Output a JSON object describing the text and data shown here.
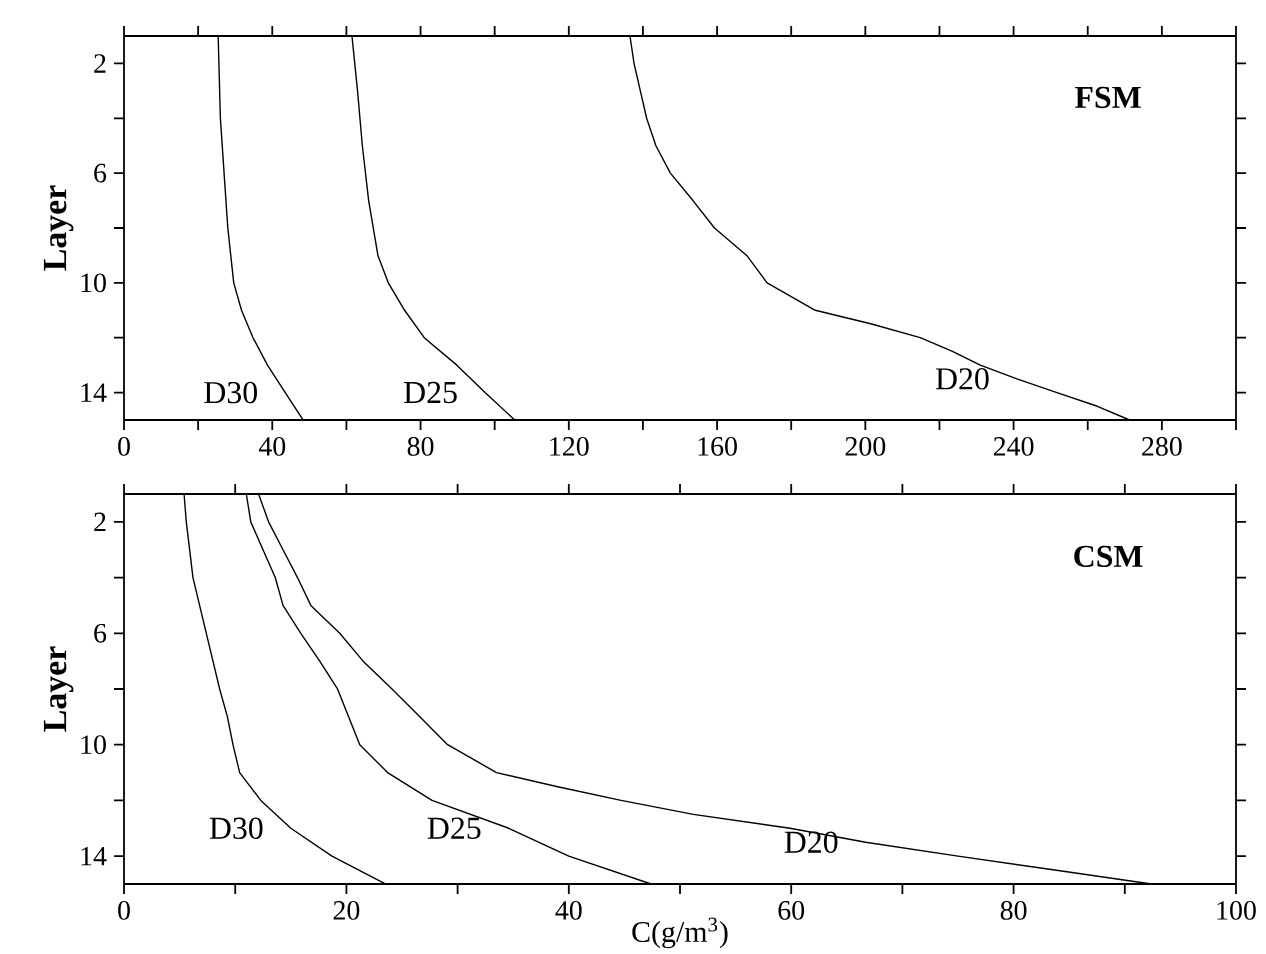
{
  "chart_data": [
    {
      "type": "line",
      "title": "FSM",
      "ylabel": "Layer",
      "xlim": [
        0,
        300
      ],
      "ylim": [
        15,
        1
      ],
      "xticks": [
        0,
        {
          "value": 20,
          "label": null
        },
        40,
        {
          "value": 60,
          "label": null
        },
        80,
        {
          "value": 100,
          "label": null
        },
        120,
        {
          "value": 140,
          "label": null
        },
        160,
        {
          "value": 180,
          "label": null
        },
        200,
        {
          "value": 220,
          "label": null
        },
        240,
        {
          "value": 260,
          "label": null
        },
        280,
        {
          "value": 300,
          "label": null
        }
      ],
      "yticks": [
        2,
        {
          "value": 4,
          "label": null
        },
        6,
        {
          "value": 8,
          "label": null
        },
        10,
        {
          "value": 12,
          "label": null
        },
        14
      ],
      "series": [
        {
          "name": "D30",
          "color": "#000000",
          "x": [
            25.4,
            26,
            27,
            28,
            29.6,
            31.7,
            34.8,
            38.7,
            43.5,
            48.3
          ],
          "values": [
            1,
            4,
            6,
            8,
            10,
            11,
            12,
            13,
            14,
            15
          ]
        },
        {
          "name": "D25",
          "color": "#000000",
          "x": [
            61.5,
            63,
            64.3,
            66,
            68.5,
            71.3,
            75.7,
            81,
            89.8,
            97.4,
            105.4
          ],
          "values": [
            1,
            3,
            5,
            7,
            9,
            10,
            11,
            12,
            13,
            14,
            15
          ]
        },
        {
          "name": "D20",
          "color": "#000000",
          "x": [
            136.5,
            137.6,
            139.3,
            141,
            143.5,
            147.4,
            153.5,
            159.3,
            168,
            173.5,
            186.5,
            201.7,
            214.8,
            223.5,
            231,
            240.9,
            251.7,
            262.6,
            271.3
          ],
          "values": [
            1,
            2,
            3,
            4,
            5,
            6,
            7,
            8,
            9,
            10,
            11,
            11.5,
            12,
            12.5,
            13,
            13.5,
            14,
            14.5,
            15
          ]
        }
      ]
    },
    {
      "type": "line",
      "title": "CSM",
      "ylabel": "Layer",
      "xlabel": "C(g/m$^{3}$)",
      "xlim": [
        0,
        100
      ],
      "ylim": [
        15,
        1
      ],
      "xticks": [
        0,
        {
          "value": 10,
          "label": null
        },
        20,
        {
          "value": 30,
          "label": null
        },
        40,
        {
          "value": 50,
          "label": null
        },
        60,
        {
          "value": 70,
          "label": null
        },
        80,
        {
          "value": 90,
          "label": null
        },
        100
      ],
      "yticks": [
        2,
        {
          "value": 4,
          "label": null
        },
        6,
        {
          "value": 8,
          "label": null
        },
        10,
        {
          "value": 12,
          "label": null
        },
        14
      ],
      "series": [
        {
          "name": "D30",
          "color": "#000000",
          "x": [
            5.4,
            5.6,
            5.9,
            6.2,
            6.8,
            7.4,
            8.0,
            8.6,
            9.3,
            9.8,
            10.4,
            12.3,
            15.0,
            18.7,
            23.5
          ],
          "values": [
            1,
            2,
            3,
            4,
            5,
            6,
            7,
            8,
            9,
            10,
            11,
            12,
            13,
            14,
            15
          ]
        },
        {
          "name": "D25",
          "color": "#000000",
          "x": [
            11.0,
            11.4,
            12.5,
            13.6,
            14.3,
            15.9,
            17.6,
            19.2,
            20.2,
            21.2,
            23.7,
            27.7,
            34.6,
            40,
            47.4
          ],
          "values": [
            1,
            2,
            3,
            4,
            5,
            6,
            7,
            8,
            9,
            10,
            11,
            12,
            13,
            14,
            15
          ]
        },
        {
          "name": "D20",
          "color": "#000000",
          "x": [
            12.1,
            13,
            14.3,
            15.6,
            16.8,
            19.4,
            21.5,
            24.1,
            26.6,
            29.1,
            33.5,
            38.9,
            44.7,
            51.2,
            59.9,
            66.7,
            75,
            83.7,
            92.4
          ],
          "values": [
            1,
            2,
            3,
            4,
            5,
            6,
            7,
            8,
            9,
            10,
            11,
            11.5,
            12,
            12.5,
            13,
            13.5,
            14,
            14.5,
            15
          ]
        }
      ]
    }
  ]
}
